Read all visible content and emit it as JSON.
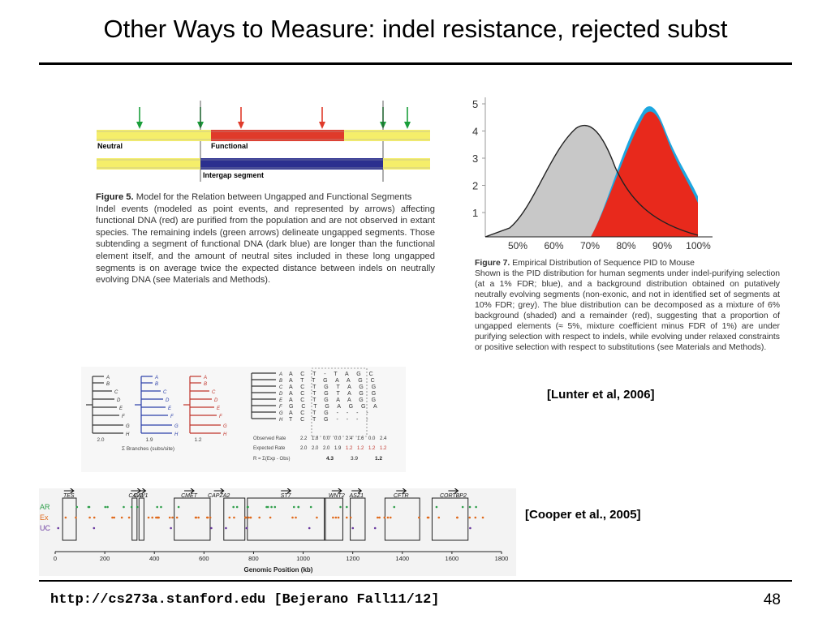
{
  "slide": {
    "title": "Other Ways to Measure:  indel resistance, rejected subst",
    "footer": "http://cs273a.stanford.edu  [Bejerano Fall11/12]",
    "page_number": "48",
    "cite_lunter": "[Lunter et al, 2006]",
    "cite_cooper": "[Cooper et al., 2005]"
  },
  "fig5": {
    "label_neutral": "Neutral",
    "label_functional": "Functional",
    "label_intergap": "Intergap segment",
    "caption_head": "Figure 5.",
    "caption_title": " Model for the Relation between Ungapped and Functional Segments",
    "caption_body": "Indel events (modeled as point events, and represented by arrows) affecting functional DNA (red) are purified from the population and are not observed in extant species. The remaining indels (green arrows) delineate ungapped segments. Those subtending a segment of functional DNA (dark blue) are longer than the functional element itself, and the amount of neutral sites included in these long ungapped segments is on average twice the expected distance between indels on neutrally evolving DNA (see Materials and Methods).",
    "colors": {
      "yellow": "#f5ee6a",
      "red": "#e03a2a",
      "blue": "#2b2f8f",
      "green": "#1a9e3a"
    }
  },
  "fig7": {
    "y_ticks": [
      "5",
      "4",
      "3",
      "2",
      "1"
    ],
    "x_ticks": [
      "50%",
      "60%",
      "70%",
      "80%",
      "90%",
      "100%"
    ],
    "caption_head": "Figure 7.",
    "caption_title": " Empirical Distribution of Sequence PID to Mouse",
    "caption_body": "Shown is the PID distribution for human segments under indel-purifying selection (at a 1% FDR; blue), and a background distribution obtained on putatively neutrally evolving segments (non-exonic, and not in identified set of segments at 10% FDR; grey). The blue distribution can be decomposed as a mixture of 6% background (shaded) and a remainder (red), suggesting that a proportion of ungapped elements (≈ 5%, mixture coefficient minus FDR of 1%) are under purifying selection with respect to indels, while evolving under relaxed constraints or positive selection with respect to substitutions (see Materials and Methods).",
    "colors": {
      "grey": "#c8c8c8",
      "blue": "#1ea7e0",
      "red": "#e8291c"
    }
  },
  "trees": {
    "leaves": [
      "A",
      "B",
      "C",
      "D",
      "E",
      "F",
      "G",
      "H"
    ],
    "tree_values": [
      "2.0",
      "1.9",
      "1.2"
    ],
    "branches_label": "Σ Branches (subs/site)",
    "alignment_rows": [
      "A C T - T A G C",
      "A T T G A A G C",
      "A C T G T A G G",
      "A C T G T A G G",
      "A C T G A A G G",
      "G C T G A G G A",
      "A C T G - - - -",
      "T C T G - - - -"
    ],
    "observed_label": "Observed Rate",
    "observed_values": [
      "2.2",
      "1.8",
      "0.0",
      "0.0",
      "2.4",
      "1.6",
      "0.0",
      "2.4"
    ],
    "expected_label": "Expected Rate",
    "expected_values": [
      "2.0",
      "2.0",
      "2.0",
      "1.9",
      "1.2",
      "1.2",
      "1.2",
      "1.2"
    ],
    "r_label": "R = Σ(Exp - Obs)",
    "r_values": [
      "4.3",
      "3.9",
      "1.2"
    ]
  },
  "genome": {
    "genes": [
      "TES",
      "CAV2",
      "CAV1",
      "CMET",
      "CAPZA2",
      "ST7",
      "WNT2",
      "ASZ1",
      "CFTR",
      "CORTBP2"
    ],
    "rows": [
      "AR",
      "Ex",
      "UC"
    ],
    "row_colors": [
      "#2e9e4a",
      "#e06a1c",
      "#6a3aa0"
    ],
    "x_ticks": [
      "0",
      "200",
      "400",
      "600",
      "800",
      "1000",
      "1200",
      "1400",
      "1600",
      "1800"
    ],
    "xlabel": "Genomic Position (kb)",
    "xlim": [
      0,
      1800
    ]
  }
}
